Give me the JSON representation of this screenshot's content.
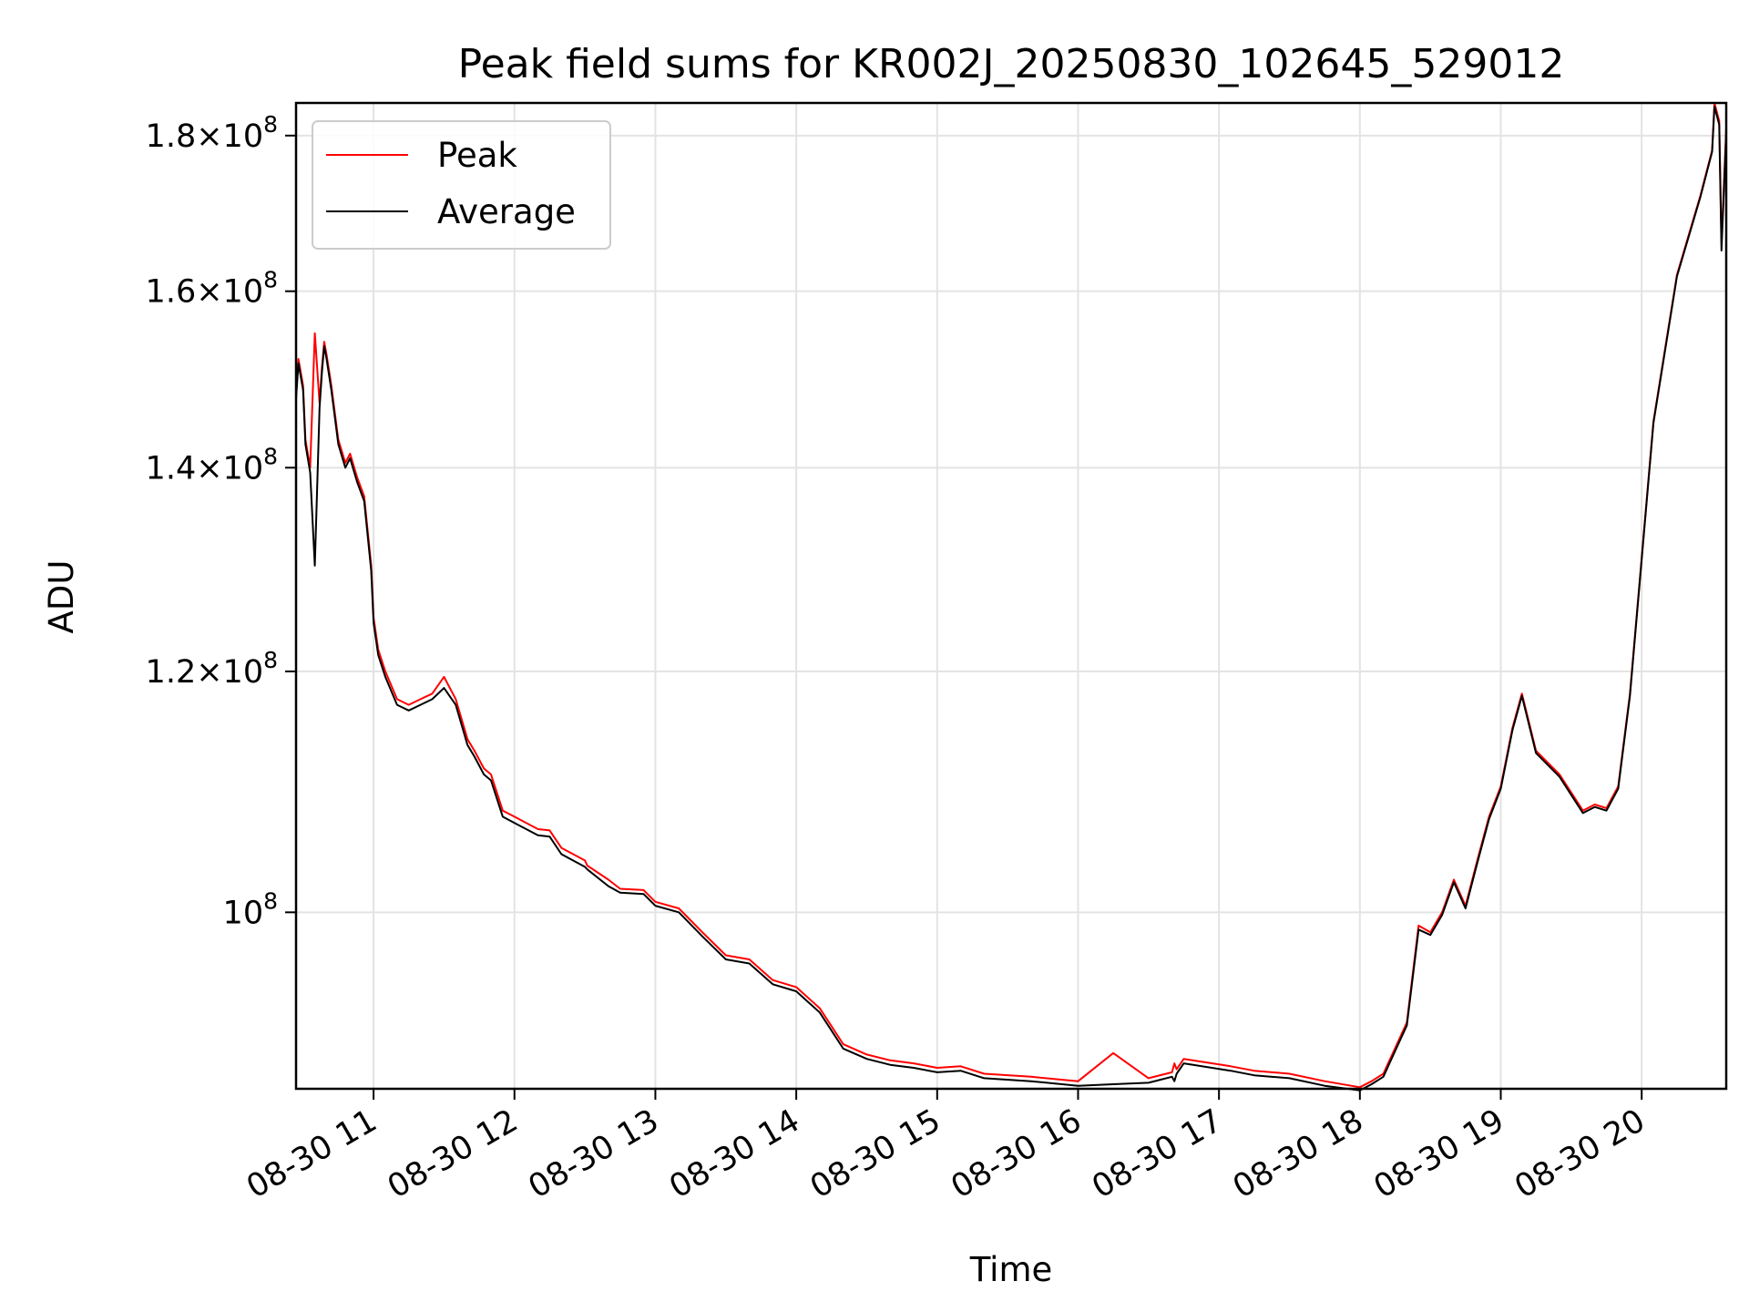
{
  "chart_data": {
    "type": "line",
    "title": "Peak field sums for KR002J_20250830_102645_529012",
    "xlabel": "Time",
    "ylabel": "ADU",
    "yscale": "log",
    "grid": true,
    "legend_position": "top-left",
    "xlim": [
      "2025-08-30 10:27",
      "2025-08-30 20:36"
    ],
    "ylim": [
      87500000,
      184500000
    ],
    "x_ticks": [
      "08-30 11",
      "08-30 12",
      "08-30 13",
      "08-30 14",
      "08-30 15",
      "08-30 16",
      "08-30 17",
      "08-30 18",
      "08-30 19",
      "08-30 20"
    ],
    "y_ticks": [
      {
        "value": 100000000,
        "mantissa": "",
        "exponent": "8"
      },
      {
        "value": 120000000,
        "mantissa": "1.2",
        "exponent": "8"
      },
      {
        "value": 140000000,
        "mantissa": "1.4",
        "exponent": "8"
      },
      {
        "value": 160000000,
        "mantissa": "1.6",
        "exponent": "8"
      },
      {
        "value": 180000000,
        "mantissa": "1.8",
        "exponent": "8"
      }
    ],
    "series": [
      {
        "name": "Peak",
        "color": "#ff0000",
        "x": [
          "2025-08-30 10:27",
          "2025-08-30 10:28",
          "2025-08-30 10:30",
          "2025-08-30 10:31",
          "2025-08-30 10:33",
          "2025-08-30 10:35",
          "2025-08-30 10:37",
          "2025-08-30 10:38",
          "2025-08-30 10:39",
          "2025-08-30 10:40",
          "2025-08-30 10:42",
          "2025-08-30 10:45",
          "2025-08-30 10:48",
          "2025-08-30 10:50",
          "2025-08-30 10:53",
          "2025-08-30 10:56",
          "2025-08-30 10:59",
          "2025-08-30 11:00",
          "2025-08-30 11:02",
          "2025-08-30 11:05",
          "2025-08-30 11:10",
          "2025-08-30 11:15",
          "2025-08-30 11:20",
          "2025-08-30 11:25",
          "2025-08-30 11:30",
          "2025-08-30 11:35",
          "2025-08-30 11:40",
          "2025-08-30 11:43",
          "2025-08-30 11:47",
          "2025-08-30 11:50",
          "2025-08-30 11:55",
          "2025-08-30 12:00",
          "2025-08-30 12:10",
          "2025-08-30 12:15",
          "2025-08-30 12:20",
          "2025-08-30 12:30",
          "2025-08-30 12:31",
          "2025-08-30 12:40",
          "2025-08-30 12:45",
          "2025-08-30 12:55",
          "2025-08-30 13:00",
          "2025-08-30 13:10",
          "2025-08-30 13:20",
          "2025-08-30 13:30",
          "2025-08-30 13:40",
          "2025-08-30 13:50",
          "2025-08-30 14:00",
          "2025-08-30 14:10",
          "2025-08-30 14:20",
          "2025-08-30 14:30",
          "2025-08-30 14:40",
          "2025-08-30 14:50",
          "2025-08-30 15:00",
          "2025-08-30 15:10",
          "2025-08-30 15:20",
          "2025-08-30 15:40",
          "2025-08-30 16:00",
          "2025-08-30 16:15",
          "2025-08-30 16:30",
          "2025-08-30 16:40",
          "2025-08-30 16:41",
          "2025-08-30 16:42",
          "2025-08-30 16:45",
          "2025-08-30 17:05",
          "2025-08-30 17:15",
          "2025-08-30 17:30",
          "2025-08-30 17:45",
          "2025-08-30 18:00",
          "2025-08-30 18:05",
          "2025-08-30 18:10",
          "2025-08-30 18:20",
          "2025-08-30 18:25",
          "2025-08-30 18:30",
          "2025-08-30 18:35",
          "2025-08-30 18:40",
          "2025-08-30 18:45",
          "2025-08-30 18:50",
          "2025-08-30 18:55",
          "2025-08-30 19:00",
          "2025-08-30 19:05",
          "2025-08-30 19:09",
          "2025-08-30 19:15",
          "2025-08-30 19:25",
          "2025-08-30 19:35",
          "2025-08-30 19:40",
          "2025-08-30 19:45",
          "2025-08-30 19:50",
          "2025-08-30 19:55",
          "2025-08-30 20:05",
          "2025-08-30 20:15",
          "2025-08-30 20:25",
          "2025-08-30 20:30",
          "2025-08-30 20:31",
          "2025-08-30 20:33",
          "2025-08-30 20:34",
          "2025-08-30 20:36"
        ],
        "values": [
          148000000,
          152000000,
          149000000,
          143000000,
          140000000,
          155000000,
          147000000,
          151000000,
          154000000,
          152500000,
          149000000,
          143000000,
          140500000,
          141500000,
          139000000,
          137000000,
          130000000,
          125000000,
          122000000,
          120000000,
          117500000,
          117000000,
          117500000,
          118000000,
          119500000,
          117500000,
          114000000,
          113000000,
          111500000,
          111000000,
          108000000,
          107500000,
          106500000,
          106400000,
          105000000,
          104000000,
          103600000,
          102500000,
          101800000,
          101700000,
          100800000,
          100300000,
          98500000,
          96800000,
          96500000,
          95000000,
          94500000,
          93000000,
          90500000,
          89800000,
          89400000,
          89200000,
          88900000,
          89000000,
          88500000,
          88300000,
          88000000,
          89900000,
          88200000,
          88600000,
          89200000,
          88800000,
          89500000,
          89000000,
          88700000,
          88500000,
          88000000,
          87600000,
          88000000,
          88500000,
          92000000,
          99000000,
          98500000,
          100000000,
          102500000,
          100500000,
          104000000,
          107500000,
          110000000,
          115000000,
          118000000,
          113000000,
          111000000,
          108000000,
          108500000,
          108200000,
          110000000,
          118000000,
          145000000,
          162000000,
          172000000,
          178000000,
          184500000,
          182000000,
          166000000,
          181000000
        ]
      },
      {
        "name": "Average",
        "color": "#000000",
        "x": [
          "2025-08-30 10:27",
          "2025-08-30 10:28",
          "2025-08-30 10:30",
          "2025-08-30 10:31",
          "2025-08-30 10:33",
          "2025-08-30 10:35",
          "2025-08-30 10:37",
          "2025-08-30 10:38",
          "2025-08-30 10:39",
          "2025-08-30 10:40",
          "2025-08-30 10:42",
          "2025-08-30 10:45",
          "2025-08-30 10:48",
          "2025-08-30 10:50",
          "2025-08-30 10:53",
          "2025-08-30 10:56",
          "2025-08-30 10:59",
          "2025-08-30 11:00",
          "2025-08-30 11:02",
          "2025-08-30 11:05",
          "2025-08-30 11:10",
          "2025-08-30 11:15",
          "2025-08-30 11:20",
          "2025-08-30 11:25",
          "2025-08-30 11:30",
          "2025-08-30 11:35",
          "2025-08-30 11:40",
          "2025-08-30 11:43",
          "2025-08-30 11:47",
          "2025-08-30 11:50",
          "2025-08-30 11:55",
          "2025-08-30 12:00",
          "2025-08-30 12:10",
          "2025-08-30 12:15",
          "2025-08-30 12:20",
          "2025-08-30 12:30",
          "2025-08-30 12:31",
          "2025-08-30 12:40",
          "2025-08-30 12:45",
          "2025-08-30 12:55",
          "2025-08-30 13:00",
          "2025-08-30 13:10",
          "2025-08-30 13:20",
          "2025-08-30 13:30",
          "2025-08-30 13:40",
          "2025-08-30 13:50",
          "2025-08-30 14:00",
          "2025-08-30 14:10",
          "2025-08-30 14:20",
          "2025-08-30 14:30",
          "2025-08-30 14:40",
          "2025-08-30 14:50",
          "2025-08-30 15:00",
          "2025-08-30 15:10",
          "2025-08-30 15:20",
          "2025-08-30 15:40",
          "2025-08-30 16:00",
          "2025-08-30 16:15",
          "2025-08-30 16:30",
          "2025-08-30 16:40",
          "2025-08-30 16:41",
          "2025-08-30 16:42",
          "2025-08-30 16:45",
          "2025-08-30 17:05",
          "2025-08-30 17:15",
          "2025-08-30 17:30",
          "2025-08-30 17:45",
          "2025-08-30 18:00",
          "2025-08-30 18:05",
          "2025-08-30 18:10",
          "2025-08-30 18:20",
          "2025-08-30 18:25",
          "2025-08-30 18:30",
          "2025-08-30 18:35",
          "2025-08-30 18:40",
          "2025-08-30 18:45",
          "2025-08-30 18:50",
          "2025-08-30 18:55",
          "2025-08-30 19:00",
          "2025-08-30 19:05",
          "2025-08-30 19:09",
          "2025-08-30 19:15",
          "2025-08-30 19:25",
          "2025-08-30 19:35",
          "2025-08-30 19:40",
          "2025-08-30 19:45",
          "2025-08-30 19:50",
          "2025-08-30 19:55",
          "2025-08-30 20:05",
          "2025-08-30 20:15",
          "2025-08-30 20:25",
          "2025-08-30 20:30",
          "2025-08-30 20:31",
          "2025-08-30 20:33",
          "2025-08-30 20:34",
          "2025-08-30 20:36"
        ],
        "values": [
          147500000,
          151500000,
          148500000,
          142500000,
          139500000,
          130000000,
          146500000,
          150500000,
          153500000,
          152000000,
          148500000,
          142500000,
          140000000,
          141000000,
          138500000,
          136500000,
          129500000,
          124500000,
          121500000,
          119500000,
          117000000,
          116500000,
          117000000,
          117500000,
          118500000,
          117000000,
          113500000,
          112500000,
          111000000,
          110500000,
          107500000,
          107000000,
          106000000,
          105900000,
          104500000,
          103500000,
          103300000,
          102000000,
          101500000,
          101400000,
          100500000,
          100000000,
          98200000,
          96500000,
          96200000,
          94700000,
          94200000,
          92700000,
          90200000,
          89500000,
          89100000,
          88900000,
          88600000,
          88700000,
          88200000,
          88000000,
          87700000,
          87800000,
          87900000,
          88300000,
          88000000,
          88500000,
          89200000,
          88700000,
          88400000,
          88200000,
          87700000,
          87400000,
          87800000,
          88300000,
          91800000,
          98700000,
          98300000,
          99800000,
          102300000,
          100300000,
          103800000,
          107300000,
          109800000,
          114800000,
          117800000,
          112800000,
          110800000,
          107800000,
          108300000,
          108000000,
          109800000,
          117800000,
          144800000,
          161800000,
          171800000,
          177800000,
          184000000,
          181500000,
          165000000,
          180500000
        ]
      }
    ]
  }
}
